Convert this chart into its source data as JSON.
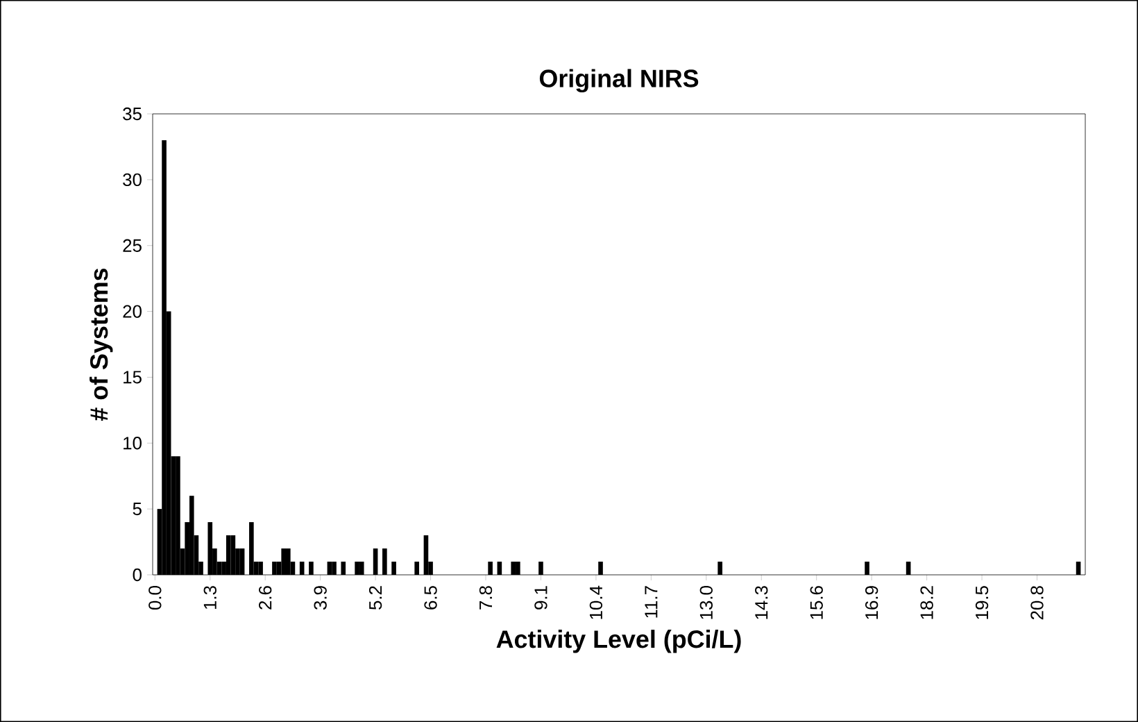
{
  "chart_data": {
    "type": "bar",
    "title": "Original NIRS",
    "xlabel": "Activity Level (pCi/L)",
    "ylabel": "# of Systems",
    "categories": [
      "0.0",
      null,
      null,
      null,
      null,
      null,
      null,
      null,
      null,
      null,
      null,
      null,
      "1.3",
      null,
      null,
      null,
      null,
      null,
      null,
      null,
      null,
      null,
      null,
      null,
      "2.6",
      null,
      null,
      null,
      null,
      null,
      null,
      null,
      null,
      null,
      null,
      null,
      "3.9",
      null,
      null,
      null,
      null,
      null,
      null,
      null,
      null,
      null,
      null,
      null,
      "5.2",
      null,
      null,
      null,
      null,
      null,
      null,
      null,
      null,
      null,
      null,
      null,
      "6.5",
      null,
      null,
      null,
      null,
      null,
      null,
      null,
      null,
      null,
      null,
      null,
      "7.8",
      null,
      null,
      null,
      null,
      null,
      null,
      null,
      null,
      null,
      null,
      null,
      "9.1",
      null,
      null,
      null,
      null,
      null,
      null,
      null,
      null,
      null,
      null,
      null,
      "10.4",
      null,
      null,
      null,
      null,
      null,
      null,
      null,
      null,
      null,
      null,
      null,
      "11.7",
      null,
      null,
      null,
      null,
      null,
      null,
      null,
      null,
      null,
      null,
      null,
      "13.0",
      null,
      null,
      null,
      null,
      null,
      null,
      null,
      null,
      null,
      null,
      null,
      "14.3",
      null,
      null,
      null,
      null,
      null,
      null,
      null,
      null,
      null,
      null,
      null,
      "15.6",
      null,
      null,
      null,
      null,
      null,
      null,
      null,
      null,
      null,
      null,
      null,
      "16.9",
      null,
      null,
      null,
      null,
      null,
      null,
      null,
      null,
      null,
      null,
      null,
      "18.2",
      null,
      null,
      null,
      null,
      null,
      null,
      null,
      null,
      null,
      null,
      null,
      "19.5",
      null,
      null,
      null,
      null,
      null,
      null,
      null,
      null,
      null,
      null,
      null,
      "20.8",
      null,
      null,
      null,
      null,
      null,
      null,
      null,
      null,
      null,
      null
    ],
    "values": [
      0,
      5,
      33,
      20,
      9,
      9,
      2,
      4,
      6,
      3,
      1,
      0,
      4,
      2,
      1,
      1,
      3,
      3,
      2,
      2,
      0,
      4,
      1,
      1,
      0,
      0,
      1,
      1,
      2,
      2,
      1,
      0,
      1,
      0,
      1,
      0,
      0,
      0,
      1,
      1,
      0,
      1,
      0,
      0,
      1,
      1,
      0,
      0,
      2,
      0,
      2,
      0,
      1,
      0,
      0,
      0,
      0,
      1,
      0,
      3,
      1,
      0,
      0,
      0,
      0,
      0,
      0,
      0,
      0,
      0,
      0,
      0,
      0,
      1,
      0,
      1,
      0,
      0,
      1,
      1,
      0,
      0,
      0,
      0,
      1,
      0,
      0,
      0,
      0,
      0,
      0,
      0,
      0,
      0,
      0,
      0,
      0,
      1,
      0,
      0,
      0,
      0,
      0,
      0,
      0,
      0,
      0,
      0,
      0,
      0,
      0,
      0,
      0,
      0,
      0,
      0,
      0,
      0,
      0,
      0,
      0,
      0,
      0,
      1,
      0,
      0,
      0,
      0,
      0,
      0,
      0,
      0,
      0,
      0,
      0,
      0,
      0,
      0,
      0,
      0,
      0,
      0,
      0,
      0,
      0,
      0,
      0,
      0,
      0,
      0,
      0,
      0,
      0,
      0,
      0,
      1,
      0,
      0,
      0,
      0,
      0,
      0,
      0,
      0,
      1,
      0,
      0,
      0,
      0,
      0,
      0,
      0,
      0,
      0,
      0,
      0,
      0,
      0,
      0,
      0,
      0,
      0,
      0,
      0,
      0,
      0,
      0,
      0,
      0,
      0,
      0,
      0,
      0,
      0,
      0,
      0,
      0,
      0,
      0,
      0,
      0,
      1,
      0
    ],
    "color": "#000000",
    "ylim": [
      0,
      35
    ],
    "yticks": [
      0,
      5,
      10,
      15,
      20,
      25,
      30,
      35
    ]
  }
}
